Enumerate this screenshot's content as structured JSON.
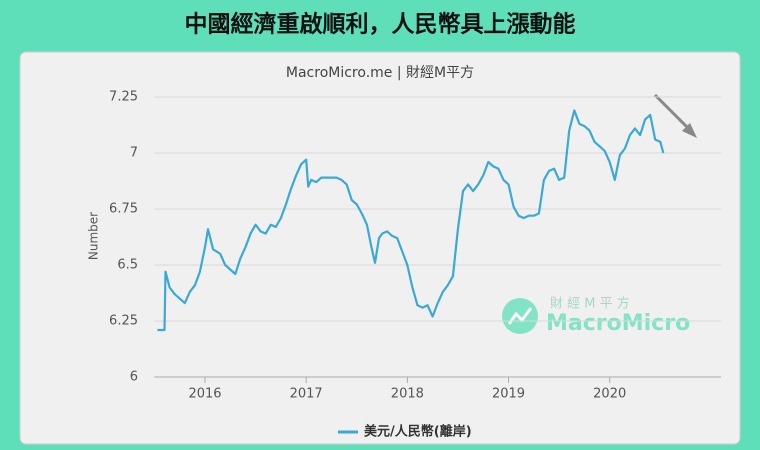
{
  "banner": "中國經濟重啟順利，人民幣具上漲動能",
  "watermark": {
    "top": "財 經 M 平 方",
    "brand": "MacroMicro"
  },
  "chart_data": {
    "type": "line",
    "subtitle": "MacroMicro.me | 財經M平方",
    "y_label": "Number",
    "xlim": [
      2015.5,
      2021.1
    ],
    "xticks": [
      2016,
      2017,
      2018,
      2019,
      2020
    ],
    "ylim": [
      6,
      7.25
    ],
    "yticks": [
      6,
      6.25,
      6.5,
      6.75,
      7,
      7.25
    ],
    "grid": true,
    "series": [
      {
        "name": "美元/人民幣(離岸)",
        "color": "#3aa9d6",
        "x": [
          2015.53,
          2015.6,
          2015.61,
          2015.65,
          2015.7,
          2015.75,
          2015.8,
          2015.85,
          2015.9,
          2015.95,
          2016.0,
          2016.03,
          2016.08,
          2016.15,
          2016.2,
          2016.3,
          2016.35,
          2016.4,
          2016.45,
          2016.5,
          2016.55,
          2016.6,
          2016.65,
          2016.7,
          2016.75,
          2016.8,
          2016.85,
          2016.9,
          2016.95,
          2017.0,
          2017.02,
          2017.05,
          2017.1,
          2017.15,
          2017.2,
          2017.3,
          2017.35,
          2017.4,
          2017.45,
          2017.5,
          2017.55,
          2017.6,
          2017.65,
          2017.68,
          2017.72,
          2017.75,
          2017.8,
          2017.85,
          2017.9,
          2017.95,
          2018.0,
          2018.05,
          2018.1,
          2018.15,
          2018.2,
          2018.25,
          2018.3,
          2018.35,
          2018.4,
          2018.45,
          2018.5,
          2018.55,
          2018.6,
          2018.65,
          2018.7,
          2018.75,
          2018.8,
          2018.85,
          2018.9,
          2018.95,
          2019.0,
          2019.05,
          2019.1,
          2019.15,
          2019.2,
          2019.25,
          2019.3,
          2019.35,
          2019.4,
          2019.45,
          2019.5,
          2019.55,
          2019.6,
          2019.65,
          2019.7,
          2019.75,
          2019.8,
          2019.85,
          2019.9,
          2019.95,
          2020.0,
          2020.05,
          2020.1,
          2020.15,
          2020.2,
          2020.25,
          2020.3,
          2020.35,
          2020.4,
          2020.45,
          2020.5,
          2020.53
        ],
        "values": [
          6.21,
          6.21,
          6.47,
          6.4,
          6.37,
          6.35,
          6.33,
          6.38,
          6.41,
          6.47,
          6.58,
          6.66,
          6.57,
          6.55,
          6.5,
          6.46,
          6.53,
          6.58,
          6.64,
          6.68,
          6.65,
          6.64,
          6.68,
          6.67,
          6.71,
          6.77,
          6.84,
          6.9,
          6.95,
          6.97,
          6.85,
          6.88,
          6.87,
          6.89,
          6.89,
          6.89,
          6.88,
          6.86,
          6.79,
          6.77,
          6.73,
          6.68,
          6.57,
          6.51,
          6.62,
          6.64,
          6.65,
          6.63,
          6.62,
          6.56,
          6.5,
          6.4,
          6.32,
          6.31,
          6.32,
          6.27,
          6.33,
          6.38,
          6.41,
          6.45,
          6.66,
          6.83,
          6.86,
          6.83,
          6.86,
          6.9,
          6.96,
          6.94,
          6.93,
          6.88,
          6.86,
          6.76,
          6.72,
          6.71,
          6.72,
          6.72,
          6.73,
          6.88,
          6.92,
          6.93,
          6.88,
          6.89,
          7.1,
          7.19,
          7.13,
          7.12,
          7.1,
          7.05,
          7.03,
          7.01,
          6.96,
          6.88,
          6.99,
          7.02,
          7.08,
          7.11,
          7.08,
          7.15,
          7.17,
          7.06,
          7.05,
          7.0
        ]
      }
    ]
  }
}
